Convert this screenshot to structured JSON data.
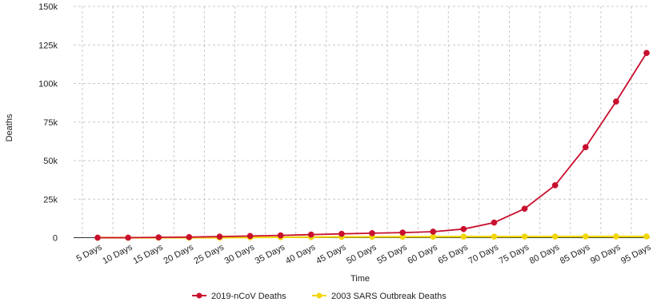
{
  "chart_data": {
    "type": "line",
    "title": "",
    "xlabel": "Time",
    "ylabel": "Deaths",
    "categories": [
      "5 Days",
      "10 Days",
      "15 Days",
      "20 Days",
      "25 Days",
      "30 Days",
      "35 Days",
      "40 Days",
      "45 Days",
      "50 Days",
      "55 Days",
      "60 Days",
      "65 Days",
      "70 Days",
      "75 Days",
      "80 Days",
      "85 Days",
      "90 Days",
      "95 Days"
    ],
    "ylim": [
      0,
      150000
    ],
    "yticks": [
      0,
      25000,
      50000,
      75000,
      100000,
      125000,
      150000
    ],
    "ytick_labels": [
      "0",
      "25k",
      "50k",
      "75k",
      "100k",
      "125k",
      "150k"
    ],
    "grid": true,
    "legend_position": "bottom",
    "series": [
      {
        "name": "2019-nCoV Deaths",
        "color": "#c8102e",
        "values": [
          0,
          0,
          200,
          400,
          700,
          1100,
          1500,
          2000,
          2500,
          2900,
          3300,
          3900,
          5600,
          9800,
          18800,
          34000,
          58700,
          88300,
          119800
        ]
      },
      {
        "name": "2003 SARS Outbreak Deaths",
        "color": "#f2d70e",
        "values": [
          0,
          0,
          0,
          0,
          0,
          200,
          300,
          400,
          500,
          550,
          600,
          650,
          700,
          700,
          750,
          750,
          770,
          770,
          774
        ]
      }
    ]
  }
}
